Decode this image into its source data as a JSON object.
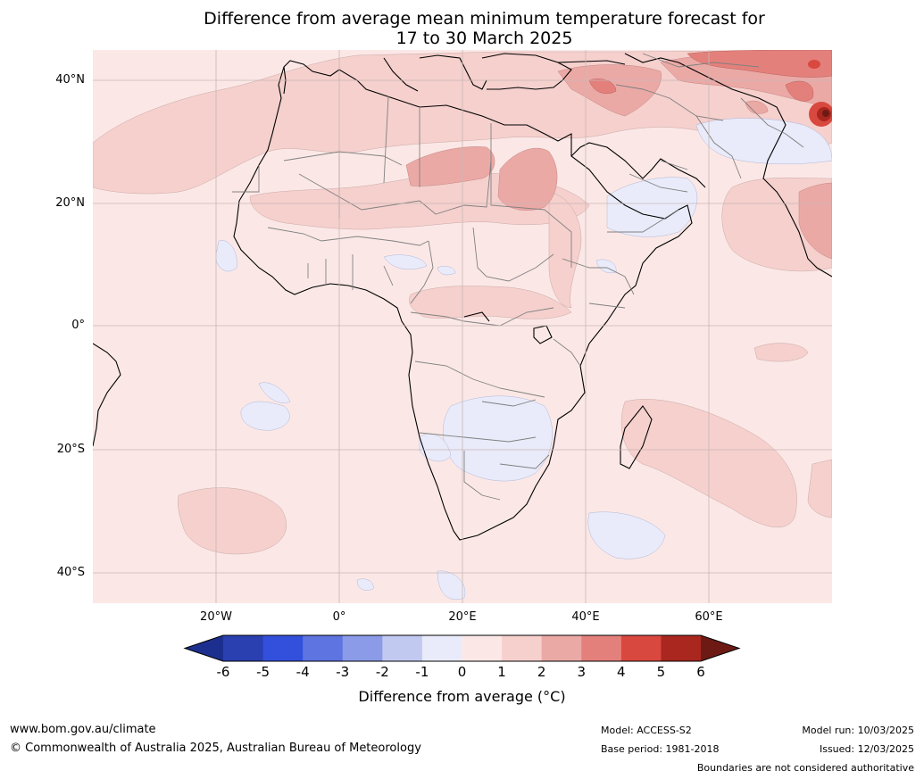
{
  "title_line1": "Difference from average mean minimum temperature forecast for",
  "title_line2": "17 to 30 March 2025",
  "lat_labels": [
    "40°N",
    "20°N",
    "0°",
    "20°S",
    "40°S"
  ],
  "lon_labels": [
    "20°W",
    "0°",
    "20°E",
    "40°E",
    "60°E"
  ],
  "colorbar": {
    "ticks": [
      "-6",
      "-5",
      "-4",
      "-3",
      "-2",
      "-1",
      "0",
      "1",
      "2",
      "3",
      "4",
      "5",
      "6"
    ],
    "colors": [
      "#1c2f8f",
      "#2a3fb0",
      "#3350dc",
      "#5d74e1",
      "#8b9be8",
      "#c2c9f1",
      "#e9ebfa",
      "#fbe8e6",
      "#f5d0cd",
      "#eba9a6",
      "#e4807b",
      "#d9483f",
      "#a9271f",
      "#6e1a14"
    ],
    "label": "Difference from average ($^\\circ$C)"
  },
  "colorbar_label_display": "Difference from average (°C)",
  "footer": {
    "website": "www.bom.gov.au/climate",
    "copyright": "© Commonwealth of Australia 2025, Australian Bureau of Meteorology",
    "model": "Model: ACCESS-S2",
    "base_period": "Base period: 1981-2018",
    "model_run": "Model run: 10/03/2025",
    "issued": "Issued: 12/03/2025",
    "disclaimer": "Boundaries are not considered authoritative"
  }
}
